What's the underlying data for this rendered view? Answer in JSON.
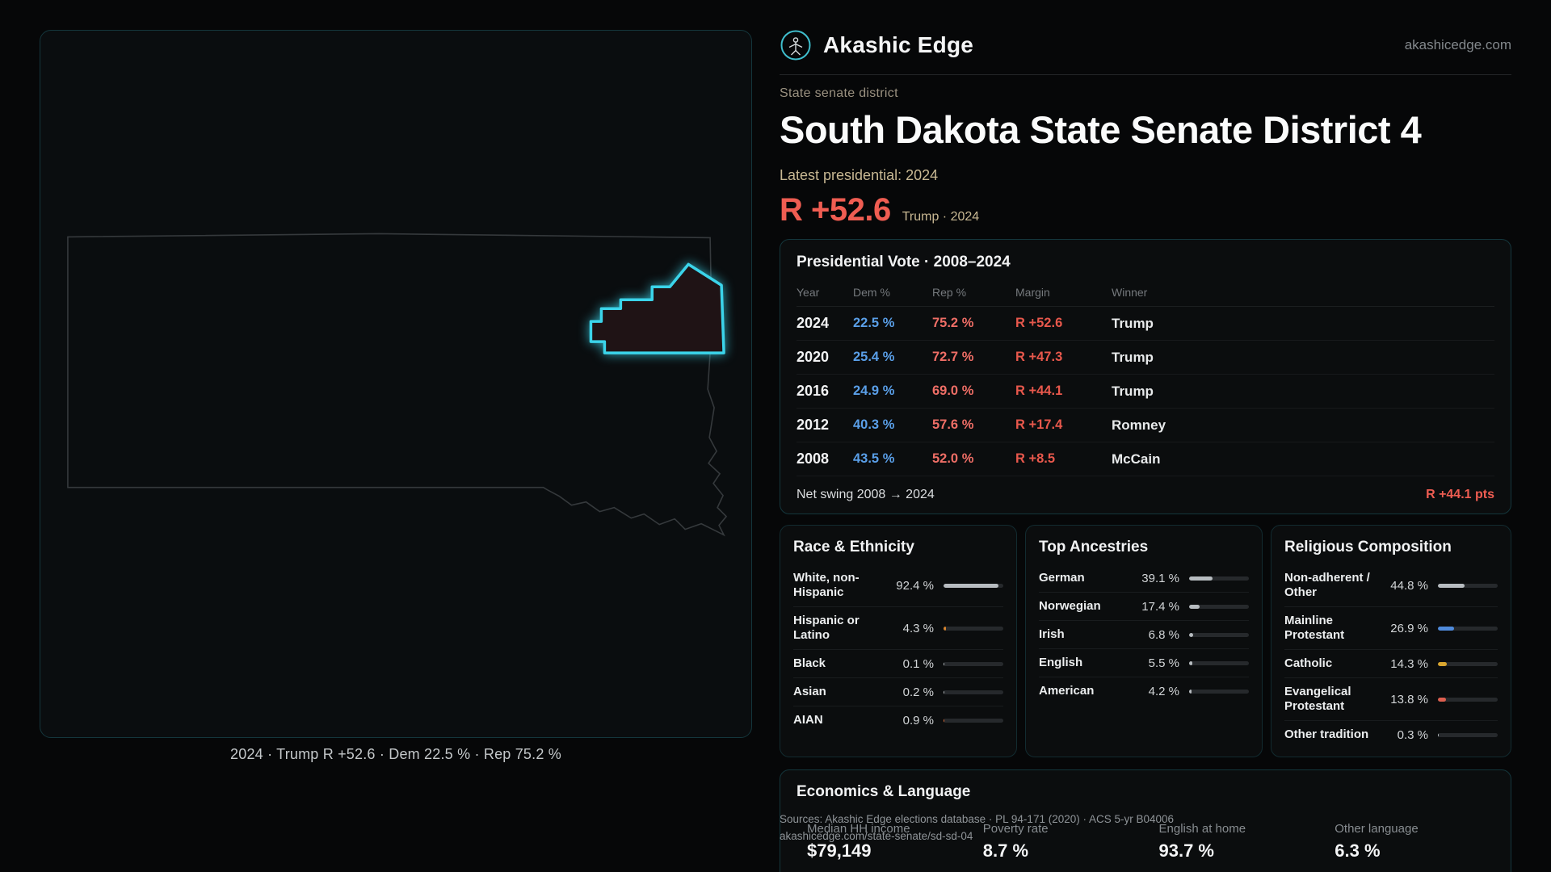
{
  "brand": {
    "name": "Akashic Edge",
    "domain": "akashicedge.com"
  },
  "page": {
    "kicker": "State senate district",
    "title": "South Dakota State Senate District 4",
    "latest_label": "Latest presidential: 2024",
    "margin_big": "R +52.6",
    "margin_context": "Trump · 2024"
  },
  "map": {
    "caption": "2024 · Trump R +52.6 · Dem 22.5 % · Rep 75.2 %"
  },
  "colors": {
    "accent_cyan": "#3bd4ea",
    "dem_blue": "#5a9fe8",
    "rep_red": "#ef6e66",
    "margin_red": "#ef5d52",
    "gold_text": "#c8b893"
  },
  "presidential": {
    "title": "Presidential Vote · 2008–2024",
    "columns": [
      "Year",
      "Dem %",
      "Rep %",
      "Margin",
      "Winner"
    ],
    "rows": [
      {
        "year": "2024",
        "dem": "22.5 %",
        "rep": "75.2 %",
        "margin": "R +52.6",
        "winner": "Trump"
      },
      {
        "year": "2020",
        "dem": "25.4 %",
        "rep": "72.7 %",
        "margin": "R +47.3",
        "winner": "Trump"
      },
      {
        "year": "2016",
        "dem": "24.9 %",
        "rep": "69.0 %",
        "margin": "R +44.1",
        "winner": "Trump"
      },
      {
        "year": "2012",
        "dem": "40.3 %",
        "rep": "57.6 %",
        "margin": "R +17.4",
        "winner": "Romney"
      },
      {
        "year": "2008",
        "dem": "43.5 %",
        "rep": "52.0 %",
        "margin": "R +8.5",
        "winner": "McCain"
      }
    ],
    "net_swing_label": "Net swing 2008 → 2024",
    "net_swing_value": "R +44.1 pts"
  },
  "race": {
    "title": "Race & Ethnicity",
    "rows": [
      {
        "label": "White, non-Hispanic",
        "value": "92.4 %",
        "pct": 92.4,
        "color": "#b7bcc0"
      },
      {
        "label": "Hispanic or Latino",
        "value": "4.3 %",
        "pct": 4.3,
        "color": "#d9862f"
      },
      {
        "label": "Black",
        "value": "0.1 %",
        "pct": 0.1,
        "color": "#b7bcc0"
      },
      {
        "label": "Asian",
        "value": "0.2 %",
        "pct": 0.2,
        "color": "#b7bcc0"
      },
      {
        "label": "AIAN",
        "value": "0.9 %",
        "pct": 0.9,
        "color": "#e06c3a"
      }
    ]
  },
  "ancestries": {
    "title": "Top Ancestries",
    "rows": [
      {
        "label": "German",
        "value": "39.1 %",
        "pct": 39.1,
        "color": "#b7bcc0"
      },
      {
        "label": "Norwegian",
        "value": "17.4 %",
        "pct": 17.4,
        "color": "#b7bcc0"
      },
      {
        "label": "Irish",
        "value": "6.8 %",
        "pct": 6.8,
        "color": "#b7bcc0"
      },
      {
        "label": "English",
        "value": "5.5 %",
        "pct": 5.5,
        "color": "#b7bcc0"
      },
      {
        "label": "American",
        "value": "4.2 %",
        "pct": 4.2,
        "color": "#b7bcc0"
      }
    ]
  },
  "religion": {
    "title": "Religious Composition",
    "rows": [
      {
        "label": "Non-adherent / Other",
        "value": "44.8 %",
        "pct": 44.8,
        "color": "#b7bcc0"
      },
      {
        "label": "Mainline Protestant",
        "value": "26.9 %",
        "pct": 26.9,
        "color": "#4f8bdc"
      },
      {
        "label": "Catholic",
        "value": "14.3 %",
        "pct": 14.3,
        "color": "#d9a62f"
      },
      {
        "label": "Evangelical Protestant",
        "value": "13.8 %",
        "pct": 13.8,
        "color": "#dd5f4f"
      },
      {
        "label": "Other tradition",
        "value": "0.3 %",
        "pct": 0.3,
        "color": "#b7bcc0"
      }
    ]
  },
  "economics": {
    "title": "Economics & Language",
    "stats": [
      {
        "label": "Median HH income",
        "value": "$79,149"
      },
      {
        "label": "Poverty rate",
        "value": "8.7 %"
      },
      {
        "label": "English at home",
        "value": "93.7 %"
      },
      {
        "label": "Other language",
        "value": "6.3 %"
      }
    ]
  },
  "footer": {
    "sources": "Sources: Akashic Edge elections database · PL 94-171 (2020) · ACS 5-yr B04006",
    "permalink": "akashicedge.com/state-senate/sd-sd-04"
  }
}
